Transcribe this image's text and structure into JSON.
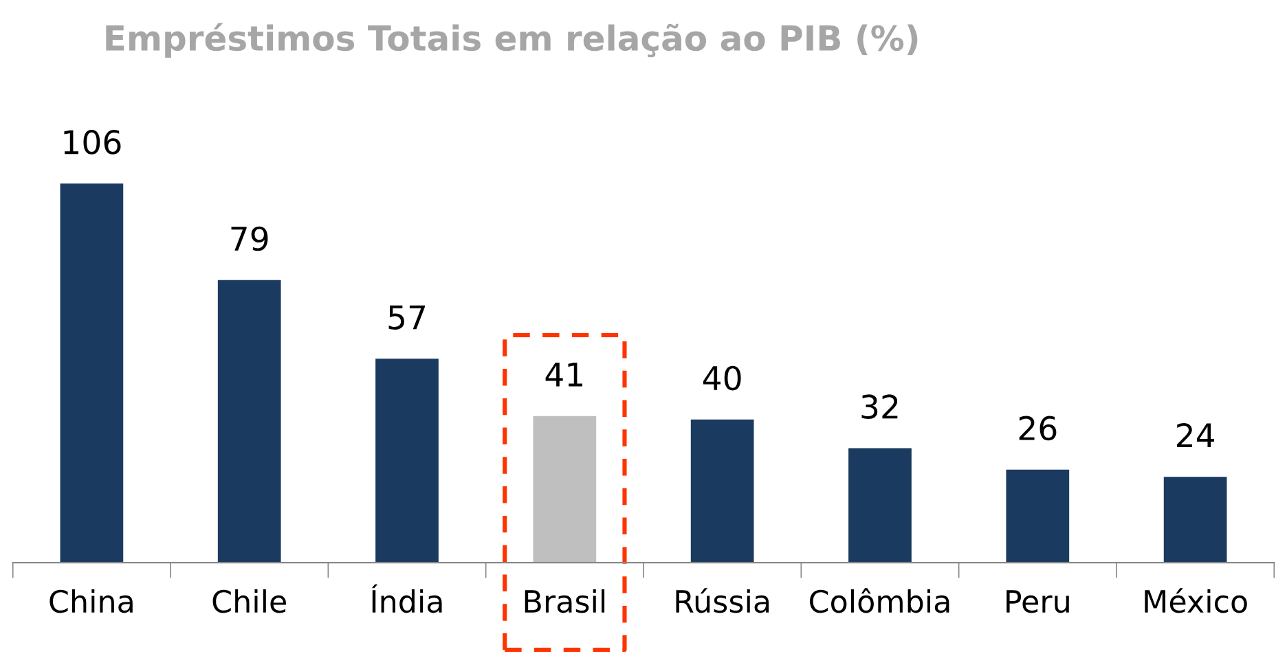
{
  "chart_data": {
    "type": "bar",
    "title": "Empréstimos Totais em relação ao PIB (%)",
    "categories": [
      "China",
      "Chile",
      "Índia",
      "Brasil",
      "Rússia",
      "Colômbia",
      "Peru",
      "México"
    ],
    "values": [
      106,
      79,
      57,
      41,
      40,
      32,
      26,
      24
    ],
    "colors": [
      "#1b3a5f",
      "#1b3a5f",
      "#1b3a5f",
      "#bfbfbf",
      "#1b3a5f",
      "#1b3a5f",
      "#1b3a5f",
      "#1b3a5f"
    ],
    "data_labels": true,
    "grid": false,
    "legend": false
  }
}
